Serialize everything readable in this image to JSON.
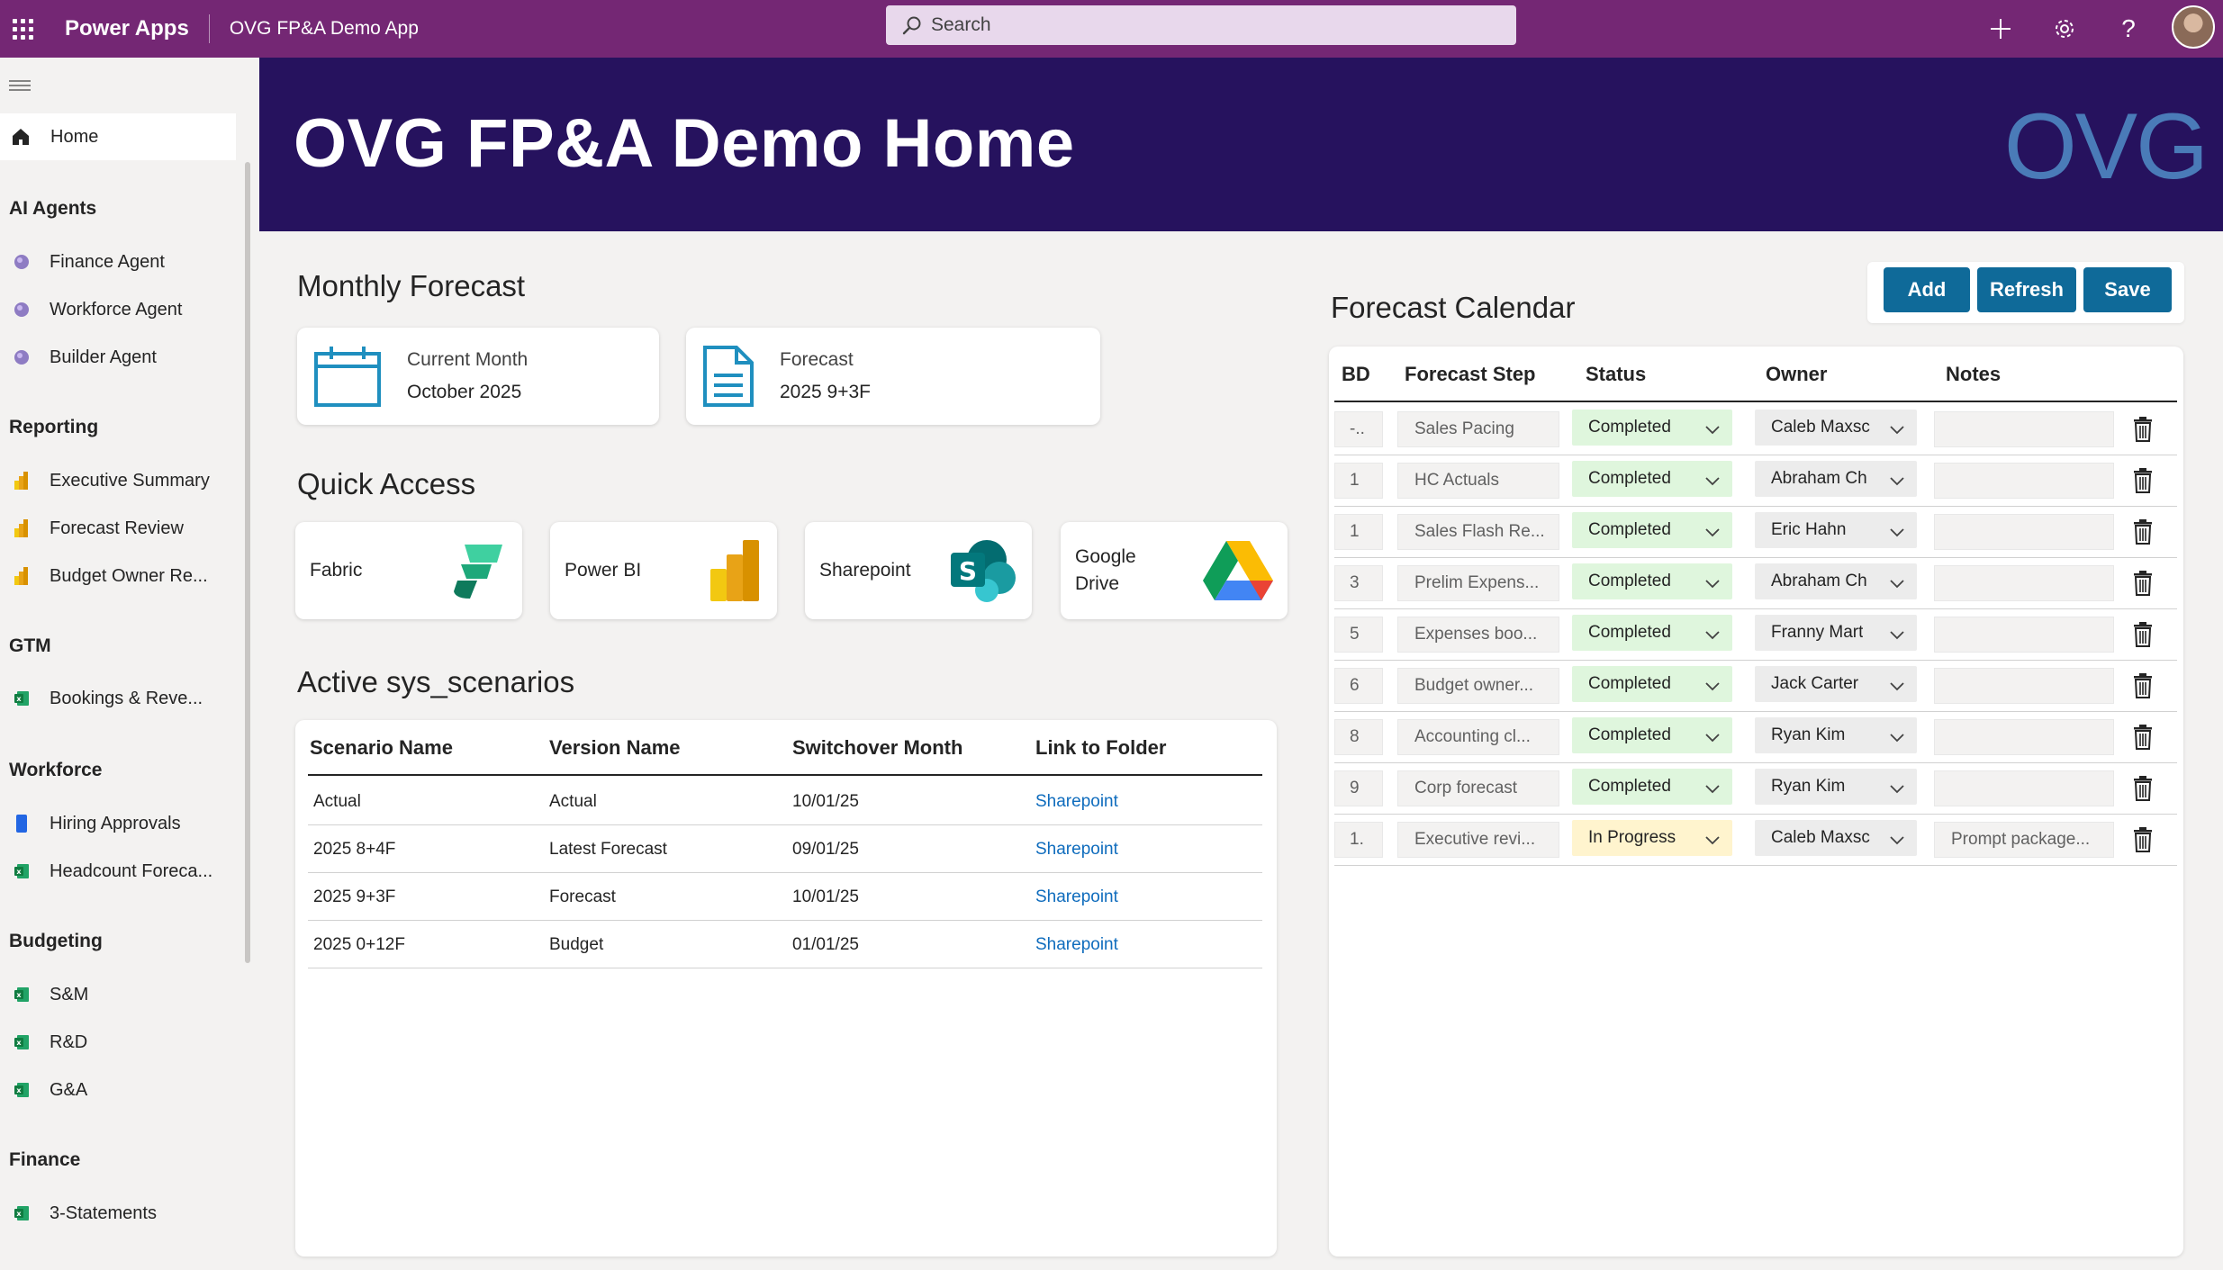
{
  "topbar": {
    "brand": "Power Apps",
    "app_name": "OVG FP&A Demo App",
    "search_placeholder": "Search",
    "icons": [
      "waffle-icon",
      "plus-icon",
      "gear-icon",
      "help-icon",
      "avatar"
    ],
    "color": "#742774"
  },
  "sidebar": {
    "home_label": "Home",
    "sections": [
      {
        "title": "AI Agents",
        "items": [
          {
            "label": "Finance Agent",
            "icon": "agent-icon"
          },
          {
            "label": "Workforce Agent",
            "icon": "agent-icon"
          },
          {
            "label": "Builder Agent",
            "icon": "agent-icon"
          }
        ]
      },
      {
        "title": "Reporting",
        "items": [
          {
            "label": "Executive Summary",
            "icon": "powerbi-icon"
          },
          {
            "label": "Forecast Review",
            "icon": "powerbi-icon"
          },
          {
            "label": "Budget Owner Re...",
            "icon": "powerbi-icon"
          }
        ]
      },
      {
        "title": "GTM",
        "items": [
          {
            "label": "Bookings & Reve...",
            "icon": "excel-icon"
          }
        ]
      },
      {
        "title": "Workforce",
        "items": [
          {
            "label": "Hiring Approvals",
            "icon": "bookmark-icon"
          },
          {
            "label": "Headcount Foreca...",
            "icon": "excel-icon"
          }
        ]
      },
      {
        "title": "Budgeting",
        "items": [
          {
            "label": "S&M",
            "icon": "excel-icon"
          },
          {
            "label": "R&D",
            "icon": "excel-icon"
          },
          {
            "label": "G&A",
            "icon": "excel-icon"
          }
        ]
      },
      {
        "title": "Finance",
        "items": [
          {
            "label": "3-Statements",
            "icon": "excel-icon"
          }
        ]
      }
    ]
  },
  "banner": {
    "title": "OVG FP&A Demo Home",
    "logo_text": "OVG",
    "background": "#26125e"
  },
  "monthly_forecast": {
    "heading": "Monthly Forecast",
    "cards": [
      {
        "label": "Current Month",
        "value": "October 2025",
        "icon": "calendar-icon"
      },
      {
        "label": "Forecast",
        "value": "2025 9+3F",
        "icon": "document-icon"
      }
    ]
  },
  "quick_access": {
    "heading": "Quick Access",
    "items": [
      {
        "label": "Fabric",
        "icon": "fabric-icon"
      },
      {
        "label": "Power BI",
        "icon": "powerbi-icon"
      },
      {
        "label": "Sharepoint",
        "icon": "sharepoint-icon"
      },
      {
        "label": "Google Drive",
        "line1": "Google",
        "line2": "Drive",
        "icon": "google-drive-icon"
      }
    ]
  },
  "scenarios": {
    "heading": "Active sys_scenarios",
    "columns": [
      "Scenario Name",
      "Version Name",
      "Switchover Month",
      "Link to Folder"
    ],
    "rows": [
      {
        "scenario": "Actual",
        "version": "Actual",
        "month": "10/01/25",
        "link": "Sharepoint"
      },
      {
        "scenario": "2025 8+4F",
        "version": "Latest Forecast",
        "month": "09/01/25",
        "link": "Sharepoint"
      },
      {
        "scenario": "2025 9+3F",
        "version": "Forecast",
        "month": "10/01/25",
        "link": "Sharepoint"
      },
      {
        "scenario": "2025 0+12F",
        "version": "Budget",
        "month": "01/01/25",
        "link": "Sharepoint"
      }
    ]
  },
  "calendar": {
    "heading": "Forecast Calendar",
    "buttons": {
      "add": "Add",
      "refresh": "Refresh",
      "save": "Save"
    },
    "columns": [
      "BD",
      "Forecast Step",
      "Status",
      "Owner",
      "Notes"
    ],
    "rows": [
      {
        "bd": "-..",
        "step": "Sales Pacing",
        "status": "Completed",
        "owner": "Caleb Maxsc",
        "notes": ""
      },
      {
        "bd": "1",
        "step": "HC Actuals",
        "status": "Completed",
        "owner": "Abraham Ch",
        "notes": ""
      },
      {
        "bd": "1",
        "step": "Sales Flash Re...",
        "status": "Completed",
        "owner": "Eric Hahn",
        "notes": ""
      },
      {
        "bd": "3",
        "step": "Prelim Expens...",
        "status": "Completed",
        "owner": "Abraham Ch",
        "notes": ""
      },
      {
        "bd": "5",
        "step": "Expenses boo...",
        "status": "Completed",
        "owner": "Franny Mart",
        "notes": ""
      },
      {
        "bd": "6",
        "step": "Budget owner...",
        "status": "Completed",
        "owner": "Jack Carter",
        "notes": ""
      },
      {
        "bd": "8",
        "step": "Accounting cl...",
        "status": "Completed",
        "owner": "Ryan Kim",
        "notes": ""
      },
      {
        "bd": "9",
        "step": "Corp forecast",
        "status": "Completed",
        "owner": "Ryan Kim",
        "notes": ""
      },
      {
        "bd": "1.",
        "step": "Executive revi...",
        "status": "In Progress",
        "owner": "Caleb Maxsc",
        "notes": "Prompt package..."
      }
    ],
    "status_colors": {
      "Completed": "#dff6dd",
      "In Progress": "#fff4ce"
    },
    "button_color": "#0f6a99"
  }
}
